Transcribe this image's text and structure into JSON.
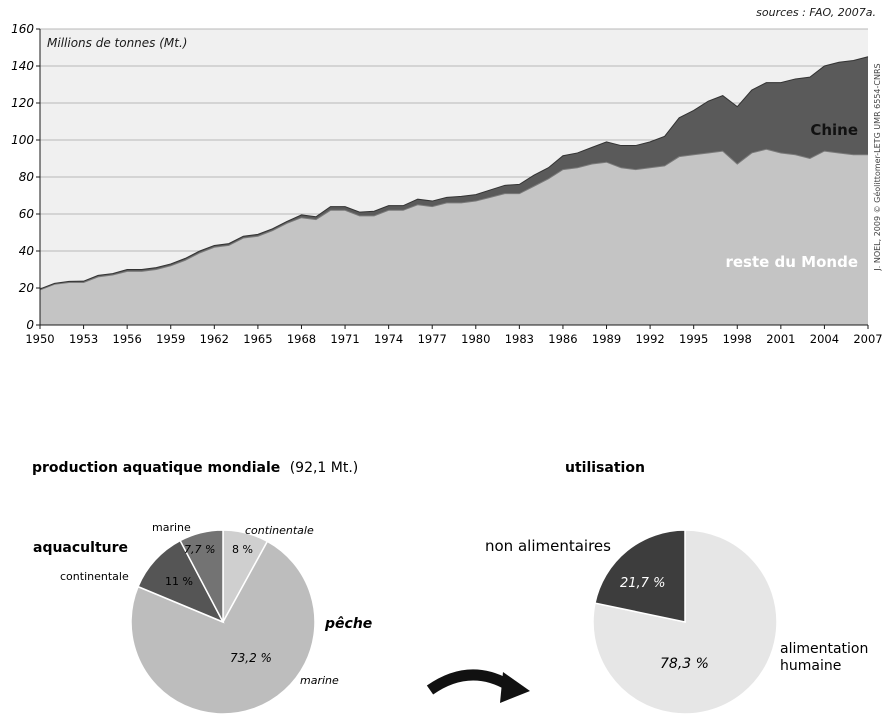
{
  "chart_data": [
    {
      "type": "area",
      "stacked": true,
      "source_note": "sources : FAO, 2007a.",
      "credit": "J. NOEL, 2009 © Géolittomer-LETG UMR 6554-CNRS",
      "ylabel": "Millions de tonnes (Mt.)",
      "ylim": [
        0,
        160
      ],
      "yticks": [
        0,
        20,
        40,
        60,
        80,
        100,
        120,
        140,
        160
      ],
      "xlim": [
        1950,
        2007
      ],
      "xticks": [
        1950,
        1953,
        1956,
        1959,
        1962,
        1965,
        1968,
        1971,
        1974,
        1977,
        1980,
        1983,
        1986,
        1989,
        1992,
        1995,
        1998,
        2001,
        2004,
        2007
      ],
      "grid": true,
      "x": [
        1950,
        1951,
        1952,
        1953,
        1954,
        1955,
        1956,
        1957,
        1958,
        1959,
        1960,
        1961,
        1962,
        1963,
        1964,
        1965,
        1966,
        1967,
        1968,
        1969,
        1970,
        1971,
        1972,
        1973,
        1974,
        1975,
        1976,
        1977,
        1978,
        1979,
        1980,
        1981,
        1982,
        1983,
        1984,
        1985,
        1986,
        1987,
        1988,
        1989,
        1990,
        1991,
        1992,
        1993,
        1994,
        1995,
        1996,
        1997,
        1998,
        1999,
        2000,
        2001,
        2002,
        2003,
        2004,
        2005,
        2006,
        2007
      ],
      "series": [
        {
          "name": "reste du Monde",
          "color": "#c4c4c4",
          "values": [
            19,
            22,
            23,
            23,
            26,
            27,
            29,
            29,
            30,
            32,
            35,
            39,
            42,
            43,
            47,
            48,
            51,
            55,
            58,
            57,
            62,
            62,
            59,
            59,
            62,
            62,
            65,
            64,
            66,
            66,
            67,
            69,
            71,
            71,
            75,
            79,
            84,
            85,
            87,
            88,
            85,
            84,
            85,
            86,
            91,
            92,
            93,
            94,
            87,
            93,
            95,
            93,
            92,
            90,
            94,
            93,
            92,
            92
          ]
        },
        {
          "name": "Chine",
          "color": "#5a5a5a",
          "values": [
            0.5,
            0.5,
            0.6,
            0.7,
            0.8,
            0.8,
            1,
            1,
            1,
            1,
            1,
            1,
            1,
            1,
            1,
            1,
            1,
            1,
            1.5,
            1.5,
            2,
            2,
            2,
            2.5,
            2.5,
            2.5,
            3,
            3,
            3,
            3.5,
            3.5,
            4,
            4.5,
            5,
            6,
            6,
            7.5,
            8,
            9,
            11,
            12,
            13,
            14,
            16,
            21,
            24,
            28,
            30,
            31,
            34,
            36,
            38,
            41,
            44,
            46,
            49,
            51,
            53
          ]
        }
      ]
    },
    {
      "type": "pie",
      "title_bold": "production aquatique mondiale",
      "title_rest": "(92,1 Mt.)",
      "group_labels": {
        "aquaculture": "aquaculture",
        "peche": "pêche"
      },
      "slices": [
        {
          "group": "pêche",
          "label": "continentale",
          "value": 8,
          "display": "8 %",
          "color": "#cfcfcf"
        },
        {
          "group": "pêche",
          "label": "marine",
          "value": 73.2,
          "display": "73,2 %",
          "color": "#bdbdbd"
        },
        {
          "group": "aquaculture",
          "label": "continentale",
          "value": 11,
          "display": "11 %",
          "color": "#555555"
        },
        {
          "group": "aquaculture",
          "label": "marine",
          "value": 7.7,
          "display": "7,7 %",
          "color": "#737373"
        }
      ]
    },
    {
      "type": "pie",
      "title": "utilisation",
      "slices": [
        {
          "label": "alimentation humaine",
          "value": 78.3,
          "display": "78,3 %",
          "color": "#e6e6e6"
        },
        {
          "label": "non alimentaires",
          "value": 21.7,
          "display": "21,7 %",
          "color": "#3d3d3d"
        }
      ]
    }
  ]
}
